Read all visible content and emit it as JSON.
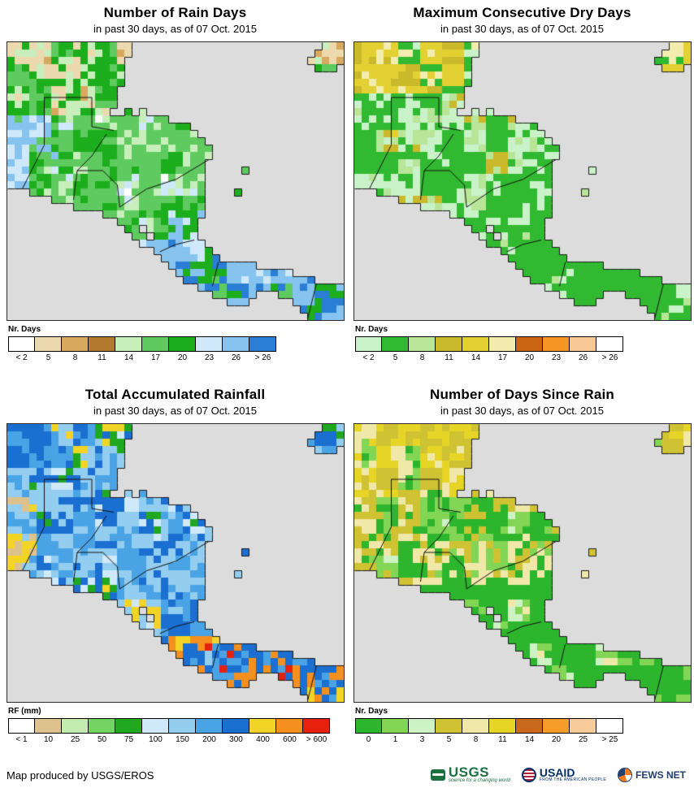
{
  "panels": [
    {
      "title": "Number of Rain Days",
      "subtitle": "in past 30 days, as of 07 Oct. 2015",
      "map_theme": "rain_days",
      "legend": {
        "label": "Nr. Days",
        "classes": [
          {
            "label": "< 2",
            "color": "#ffffff"
          },
          {
            "label": "5",
            "color": "#ecd9ae"
          },
          {
            "label": "8",
            "color": "#d8a85e"
          },
          {
            "label": "11",
            "color": "#b2792f"
          },
          {
            "label": "14",
            "color": "#c8eebc"
          },
          {
            "label": "17",
            "color": "#5fca5f"
          },
          {
            "label": "20",
            "color": "#1cae1c"
          },
          {
            "label": "23",
            "color": "#cfe8fa"
          },
          {
            "label": "26",
            "color": "#86c3ee"
          },
          {
            "label": "> 26",
            "color": "#2a7fd4"
          }
        ]
      }
    },
    {
      "title": "Maximum Consecutive Dry Days",
      "subtitle": "in past 30 days, as of 07 Oct. 2015",
      "map_theme": "dry_days",
      "legend": {
        "label": "Nr. Days",
        "classes": [
          {
            "label": "< 2",
            "color": "#c9f2c9"
          },
          {
            "label": "5",
            "color": "#31ba31"
          },
          {
            "label": "8",
            "color": "#b9e598"
          },
          {
            "label": "11",
            "color": "#c9b92b"
          },
          {
            "label": "14",
            "color": "#e3d133"
          },
          {
            "label": "17",
            "color": "#f2ecae"
          },
          {
            "label": "20",
            "color": "#c86414"
          },
          {
            "label": "23",
            "color": "#f59624"
          },
          {
            "label": "26",
            "color": "#f8c897"
          },
          {
            "label": "> 26",
            "color": "#ffffff"
          }
        ]
      }
    },
    {
      "title": "Total Accumulated Rainfall",
      "subtitle": "in past 30 days, as of 07 Oct. 2015",
      "map_theme": "rainfall",
      "legend": {
        "label": "RF (mm)",
        "classes": [
          {
            "label": "< 1",
            "color": "#ffffff"
          },
          {
            "label": "10",
            "color": "#dec28e"
          },
          {
            "label": "25",
            "color": "#c2ecb0"
          },
          {
            "label": "50",
            "color": "#74d463"
          },
          {
            "label": "75",
            "color": "#21a821"
          },
          {
            "label": "100",
            "color": "#cfe9f9"
          },
          {
            "label": "150",
            "color": "#93cdf0"
          },
          {
            "label": "200",
            "color": "#4aa3e4"
          },
          {
            "label": "300",
            "color": "#1a6fd0"
          },
          {
            "label": "400",
            "color": "#f2d426"
          },
          {
            "label": "600",
            "color": "#f58f1e"
          },
          {
            "label": "> 600",
            "color": "#e8200e"
          }
        ]
      }
    },
    {
      "title": "Number of Days Since Rain",
      "subtitle": "in past 30 days, as of 07 Oct. 2015",
      "map_theme": "days_since_rain",
      "legend": {
        "label": "Nr. Days",
        "classes": [
          {
            "label": "0",
            "color": "#2db52d"
          },
          {
            "label": "1",
            "color": "#83d655"
          },
          {
            "label": "3",
            "color": "#cdf2c3"
          },
          {
            "label": "5",
            "color": "#cfc233"
          },
          {
            "label": "8",
            "color": "#f0e8a8"
          },
          {
            "label": "11",
            "color": "#e6d426"
          },
          {
            "label": "14",
            "color": "#c8691c"
          },
          {
            "label": "20",
            "color": "#f59d28"
          },
          {
            "label": "25",
            "color": "#f8cb9b"
          },
          {
            "label": "> 25",
            "color": "#ffffff"
          }
        ]
      }
    }
  ],
  "map": {
    "ocean_color": "#dcdcdc",
    "cols": 46,
    "rows": 38,
    "mask_ranges": [
      [
        [
          0,
          16
        ],
        [
          43,
          45
        ]
      ],
      [
        [
          0,
          16
        ],
        [
          42,
          45
        ]
      ],
      [
        [
          0,
          15
        ],
        [
          41,
          45
        ]
      ],
      [
        [
          0,
          15
        ],
        [
          42,
          44
        ]
      ],
      [
        [
          0,
          15
        ]
      ],
      [
        [
          0,
          15
        ]
      ],
      [
        [
          0,
          14
        ]
      ],
      [
        [
          0,
          14
        ]
      ],
      [
        [
          0,
          14
        ]
      ],
      [
        [
          0,
          13
        ],
        [
          16,
          16
        ],
        [
          18,
          18
        ]
      ],
      [
        [
          0,
          21
        ]
      ],
      [
        [
          0,
          24
        ]
      ],
      [
        [
          0,
          25
        ]
      ],
      [
        [
          0,
          26
        ]
      ],
      [
        [
          0,
          27
        ]
      ],
      [
        [
          0,
          27
        ]
      ],
      [
        [
          0,
          26
        ]
      ],
      [
        [
          0,
          26
        ],
        [
          32,
          32
        ]
      ],
      [
        [
          0,
          26
        ]
      ],
      [
        [
          0,
          26
        ]
      ],
      [
        [
          3,
          26
        ],
        [
          31,
          31
        ]
      ],
      [
        [
          6,
          26
        ]
      ],
      [
        [
          9,
          26
        ]
      ],
      [
        [
          13,
          26
        ]
      ],
      [
        [
          15,
          25
        ]
      ],
      [
        [
          16,
          17
        ],
        [
          19,
          25
        ]
      ],
      [
        [
          17,
          18
        ],
        [
          20,
          25
        ]
      ],
      [
        [
          18,
          26
        ]
      ],
      [
        [
          20,
          27
        ]
      ],
      [
        [
          21,
          28
        ]
      ],
      [
        [
          22,
          33
        ]
      ],
      [
        [
          23,
          38
        ]
      ],
      [
        [
          24,
          41
        ]
      ],
      [
        [
          26,
          45
        ]
      ],
      [
        [
          28,
          33
        ],
        [
          37,
          45
        ]
      ],
      [
        [
          30,
          32
        ],
        [
          39,
          45
        ]
      ],
      [
        [
          40,
          45
        ]
      ],
      [
        [
          41,
          45
        ]
      ]
    ]
  },
  "footer": {
    "credit": "Map produced by USGS/EROS",
    "logos": [
      {
        "name": "USGS",
        "tagline": "science for a changing world"
      },
      {
        "name": "USAID",
        "tagline": "FROM THE AMERICAN PEOPLE"
      },
      {
        "name": "FEWS NET",
        "tagline": ""
      }
    ]
  }
}
